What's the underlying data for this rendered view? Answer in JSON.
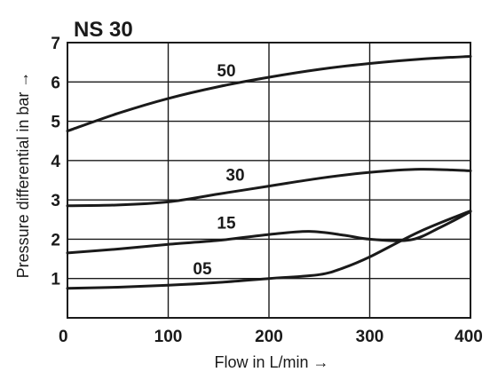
{
  "chart_data": {
    "type": "line",
    "title": "NS 30",
    "xlabel": "Flow in L/min →",
    "ylabel": "Pressure differential in bar →",
    "xlim": [
      0,
      400
    ],
    "ylim": [
      0,
      7
    ],
    "x_ticks": [
      "0",
      "100",
      "200",
      "300",
      "400"
    ],
    "y_ticks": [
      "1",
      "2",
      "3",
      "4",
      "5",
      "6",
      "7"
    ],
    "grid": true,
    "series": [
      {
        "name": "50",
        "x": [
          0,
          50,
          100,
          150,
          200,
          250,
          300,
          350,
          400
        ],
        "y": [
          4.75,
          5.2,
          5.58,
          5.88,
          6.12,
          6.32,
          6.47,
          6.58,
          6.65
        ]
      },
      {
        "name": "30",
        "x": [
          0,
          50,
          100,
          150,
          200,
          250,
          300,
          350,
          400
        ],
        "y": [
          2.85,
          2.87,
          2.95,
          3.15,
          3.35,
          3.55,
          3.7,
          3.78,
          3.74
        ]
      },
      {
        "name": "15",
        "x": [
          0,
          50,
          100,
          150,
          200,
          240,
          275,
          300,
          340,
          370,
          400
        ],
        "y": [
          1.65,
          1.75,
          1.87,
          1.97,
          2.12,
          2.2,
          2.1,
          2.0,
          1.98,
          2.3,
          2.7
        ]
      },
      {
        "name": "05",
        "x": [
          0,
          50,
          100,
          150,
          200,
          250,
          275,
          300,
          350,
          400
        ],
        "y": [
          0.75,
          0.78,
          0.83,
          0.9,
          1.0,
          1.1,
          1.28,
          1.55,
          2.2,
          2.72
        ]
      }
    ]
  }
}
